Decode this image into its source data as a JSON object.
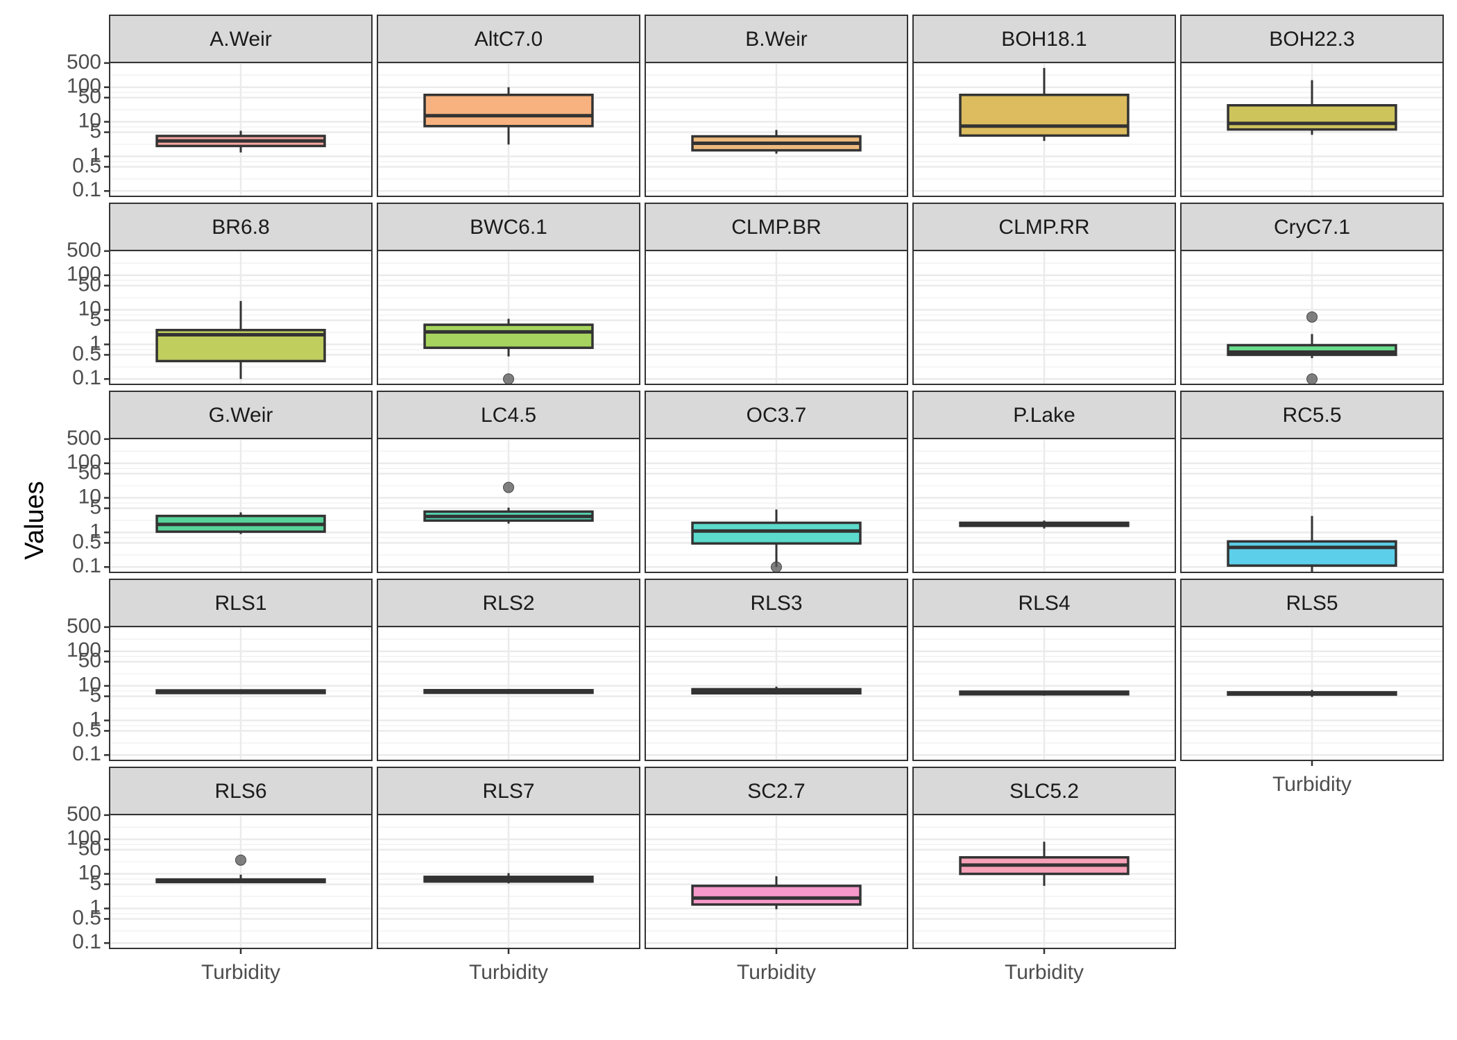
{
  "chart_data": {
    "type": "box",
    "ylabel": "Values",
    "xlabel": "",
    "y_scale": "log10",
    "y_ticks": [
      0.1,
      0.5,
      1,
      5,
      10,
      50,
      100,
      500
    ],
    "y_tick_labels": [
      "0.1",
      "0.5",
      "1",
      "5",
      "10",
      "50",
      "100",
      "500"
    ],
    "ylim": [
      0.07,
      520
    ],
    "x_category": "Turbidity",
    "grid": true,
    "legend": "none",
    "panels": [
      {
        "name": "A.Weir",
        "color": "#F8A6A0",
        "box": {
          "whisker_low": 1.3,
          "q1": 2.0,
          "median": 2.8,
          "q3": 3.9,
          "whisker_high": 5.5
        },
        "outliers": []
      },
      {
        "name": "AltC7.0",
        "color": "#F7B27F",
        "box": {
          "whisker_low": 2.2,
          "q1": 7.5,
          "median": 15,
          "q3": 60,
          "whisker_high": 100
        },
        "outliers": []
      },
      {
        "name": "B.Weir",
        "color": "#EDB97C",
        "box": {
          "whisker_low": 1.2,
          "q1": 1.5,
          "median": 2.4,
          "q3": 3.8,
          "whisker_high": 5.8
        },
        "outliers": []
      },
      {
        "name": "BOH18.1",
        "color": "#DCBC5E",
        "box": {
          "whisker_low": 2.8,
          "q1": 4.0,
          "median": 7.5,
          "q3": 60,
          "whisker_high": 360
        },
        "outliers": []
      },
      {
        "name": "BOH22.3",
        "color": "#CDC45C",
        "box": {
          "whisker_low": 4.2,
          "q1": 6.0,
          "median": 9.0,
          "q3": 30,
          "whisker_high": 160
        },
        "outliers": []
      },
      {
        "name": "BR6.8",
        "color": "#C0CE5E",
        "box": {
          "whisker_low": 0.1,
          "q1": 0.33,
          "median": 1.9,
          "q3": 2.6,
          "whisker_high": 18
        },
        "outliers": []
      },
      {
        "name": "BWC6.1",
        "color": "#A6D45E",
        "box": {
          "whisker_low": 0.45,
          "q1": 0.8,
          "median": 2.3,
          "q3": 3.7,
          "whisker_high": 5.5
        },
        "outliers": [
          0.1
        ]
      },
      {
        "name": "CLMP.BR",
        "color": "#8FD86A",
        "box": null,
        "outliers": []
      },
      {
        "name": "CLMP.RR",
        "color": "#7ADB7E",
        "box": null,
        "outliers": []
      },
      {
        "name": "CryC7.1",
        "color": "#6ADC8E",
        "box": {
          "whisker_low": 0.4,
          "q1": 0.5,
          "median": 0.6,
          "q3": 0.95,
          "whisker_high": 2.0
        },
        "outliers": [
          6.2,
          0.1
        ]
      },
      {
        "name": "G.Weir",
        "color": "#57D39A",
        "box": {
          "whisker_low": 0.9,
          "q1": 1.05,
          "median": 1.7,
          "q3": 3.0,
          "whisker_high": 3.8
        },
        "outliers": []
      },
      {
        "name": "LC4.5",
        "color": "#55D6B6",
        "box": {
          "whisker_low": 1.8,
          "q1": 2.2,
          "median": 2.9,
          "q3": 4.0,
          "whisker_high": 5.2
        },
        "outliers": [
          20
        ]
      },
      {
        "name": "OC3.7",
        "color": "#5CDACC",
        "box": {
          "whisker_low": 0.1,
          "q1": 0.48,
          "median": 1.1,
          "q3": 1.9,
          "whisker_high": 4.6
        },
        "outliers": [
          0.1
        ]
      },
      {
        "name": "P.Lake",
        "color": "#5AD6E0",
        "box": {
          "whisker_low": 1.3,
          "q1": 1.55,
          "median": 1.7,
          "q3": 1.9,
          "whisker_high": 2.2
        },
        "outliers": []
      },
      {
        "name": "RC5.5",
        "color": "#5CCFEA",
        "box": {
          "whisker_low": 0.07,
          "q1": 0.11,
          "median": 0.37,
          "q3": 0.55,
          "whisker_high": 3.0
        },
        "outliers": []
      },
      {
        "name": "RLS1",
        "color": "#5CC6F0",
        "box": {
          "whisker_low": 6.0,
          "q1": 6.2,
          "median": 6.8,
          "q3": 7.4,
          "whisker_high": 7.8
        },
        "outliers": []
      },
      {
        "name": "RLS2",
        "color": "#6ABAF4",
        "box": {
          "whisker_low": 6.0,
          "q1": 6.3,
          "median": 7.0,
          "q3": 7.5,
          "whisker_high": 7.9
        },
        "outliers": []
      },
      {
        "name": "RLS3",
        "color": "#86AEF6",
        "box": {
          "whisker_low": 5.8,
          "q1": 6.1,
          "median": 7.0,
          "q3": 8.0,
          "whisker_high": 9.5
        },
        "outliers": []
      },
      {
        "name": "RLS4",
        "color": "#A3A3F6",
        "box": {
          "whisker_low": 5.2,
          "q1": 5.7,
          "median": 6.2,
          "q3": 6.8,
          "whisker_high": 7.2
        },
        "outliers": []
      },
      {
        "name": "RLS5",
        "color": "#BE9BF4",
        "box": {
          "whisker_low": 4.8,
          "q1": 5.6,
          "median": 6.0,
          "q3": 6.5,
          "whisker_high": 7.6
        },
        "outliers": []
      },
      {
        "name": "RLS6",
        "color": "#D696EC",
        "box": {
          "whisker_low": 5.5,
          "q1": 5.8,
          "median": 6.3,
          "q3": 6.9,
          "whisker_high": 9.5
        },
        "outliers": [
          25
        ]
      },
      {
        "name": "RLS7",
        "color": "#E794D8",
        "box": {
          "whisker_low": 5.3,
          "q1": 6.0,
          "median": 7.0,
          "q3": 8.2,
          "whisker_high": 10.5
        },
        "outliers": []
      },
      {
        "name": "SC2.7",
        "color": "#F598CA",
        "box": {
          "whisker_low": 0.95,
          "q1": 1.3,
          "median": 2.0,
          "q3": 4.5,
          "whisker_high": 8.5
        },
        "outliers": []
      },
      {
        "name": "SLC5.2",
        "color": "#F7A1B8",
        "box": {
          "whisker_low": 4.5,
          "q1": 10,
          "median": 18,
          "q3": 30,
          "whisker_high": 85
        },
        "outliers": []
      }
    ]
  }
}
